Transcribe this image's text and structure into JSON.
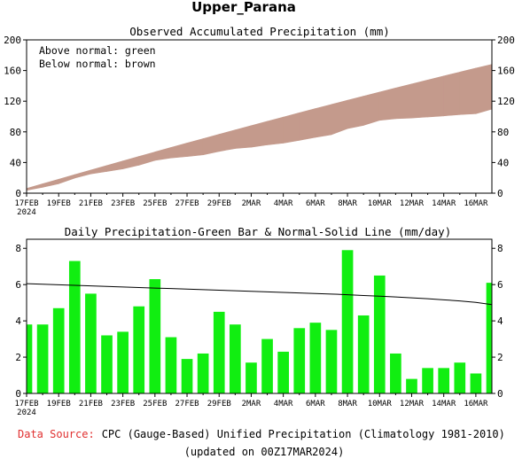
{
  "header": {
    "title": "Upper_Parana"
  },
  "footer": {
    "source_label": "Data Source:",
    "source_text": "CPC (Gauge-Based) Unified Precipitation (Climatology 1981-2010)",
    "updated": "(updated on 00Z17MAR2024)"
  },
  "colors": {
    "above_normal": "#00a000",
    "below_normal": "#c49a8c",
    "bar": "#11ee11",
    "source_label": "#e03030"
  },
  "chart_data": [
    {
      "type": "area",
      "title": "Observed Accumulated Precipitation (mm)",
      "annotations": [
        "Above normal: green",
        "Below normal: brown"
      ],
      "ylim": [
        0,
        200
      ],
      "yticks": [
        0,
        40,
        80,
        120,
        160,
        200
      ],
      "x_ticks": [
        "17FEB",
        "19FEB",
        "21FEB",
        "23FEB",
        "25FEB",
        "27FEB",
        "29FEB",
        "2MAR",
        "4MAR",
        "6MAR",
        "8MAR",
        "10MAR",
        "12MAR",
        "14MAR",
        "16MAR"
      ],
      "x_year": "2024",
      "x": [
        "17FEB",
        "18FEB",
        "19FEB",
        "20FEB",
        "21FEB",
        "22FEB",
        "23FEB",
        "24FEB",
        "25FEB",
        "26FEB",
        "27FEB",
        "28FEB",
        "29FEB",
        "1MAR",
        "2MAR",
        "3MAR",
        "4MAR",
        "5MAR",
        "6MAR",
        "7MAR",
        "8MAR",
        "9MAR",
        "10MAR",
        "11MAR",
        "12MAR",
        "13MAR",
        "14MAR",
        "15MAR",
        "16MAR",
        "17MAR"
      ],
      "series": [
        {
          "name": "Observed",
          "values": [
            3.8,
            7.6,
            12.3,
            19.6,
            25.1,
            28.3,
            31.7,
            36.5,
            42.8,
            45.9,
            47.8,
            50.0,
            54.5,
            58.3,
            60.0,
            63.0,
            65.3,
            68.9,
            72.8,
            76.3,
            84.2,
            88.5,
            95.0,
            97.2,
            98.0,
            99.4,
            100.8,
            102.5,
            103.6,
            109.7
          ]
        },
        {
          "name": "Normal",
          "values": [
            6.1,
            12.2,
            18.2,
            24.2,
            30.2,
            36.1,
            42.0,
            47.9,
            53.8,
            59.6,
            65.4,
            71.1,
            76.8,
            82.5,
            88.1,
            93.7,
            99.3,
            104.9,
            110.4,
            115.8,
            121.2,
            126.6,
            131.9,
            137.2,
            142.5,
            147.7,
            152.9,
            158.0,
            163.1,
            168.1
          ]
        }
      ]
    },
    {
      "type": "bar",
      "title": "Daily Precipitation-Green Bar & Normal-Solid Line (mm/day)",
      "ylim": [
        0,
        8.5
      ],
      "yticks": [
        0,
        2,
        4,
        6,
        8
      ],
      "x_ticks": [
        "17FEB",
        "19FEB",
        "21FEB",
        "23FEB",
        "25FEB",
        "27FEB",
        "29FEB",
        "2MAR",
        "4MAR",
        "6MAR",
        "8MAR",
        "10MAR",
        "12MAR",
        "14MAR",
        "16MAR"
      ],
      "x_year": "2024",
      "categories": [
        "17FEB",
        "18FEB",
        "19FEB",
        "20FEB",
        "21FEB",
        "22FEB",
        "23FEB",
        "24FEB",
        "25FEB",
        "26FEB",
        "27FEB",
        "28FEB",
        "29FEB",
        "1MAR",
        "2MAR",
        "3MAR",
        "4MAR",
        "5MAR",
        "6MAR",
        "7MAR",
        "8MAR",
        "9MAR",
        "10MAR",
        "11MAR",
        "12MAR",
        "13MAR",
        "14MAR",
        "15MAR",
        "16MAR",
        "17MAR"
      ],
      "series": [
        {
          "name": "Daily",
          "values": [
            3.8,
            3.8,
            4.7,
            7.3,
            5.5,
            3.2,
            3.4,
            4.8,
            6.3,
            3.1,
            1.9,
            2.2,
            4.5,
            3.8,
            1.7,
            3.0,
            2.3,
            3.6,
            3.9,
            3.5,
            7.9,
            4.3,
            6.5,
            2.2,
            0.8,
            1.4,
            1.4,
            1.7,
            1.1,
            6.1
          ]
        },
        {
          "name": "Normal",
          "values": [
            6.05,
            6.02,
            5.99,
            5.96,
            5.93,
            5.9,
            5.87,
            5.84,
            5.81,
            5.78,
            5.75,
            5.72,
            5.69,
            5.66,
            5.63,
            5.6,
            5.57,
            5.54,
            5.51,
            5.48,
            5.44,
            5.4,
            5.36,
            5.32,
            5.27,
            5.22,
            5.16,
            5.1,
            5.02,
            4.9
          ]
        }
      ]
    }
  ]
}
